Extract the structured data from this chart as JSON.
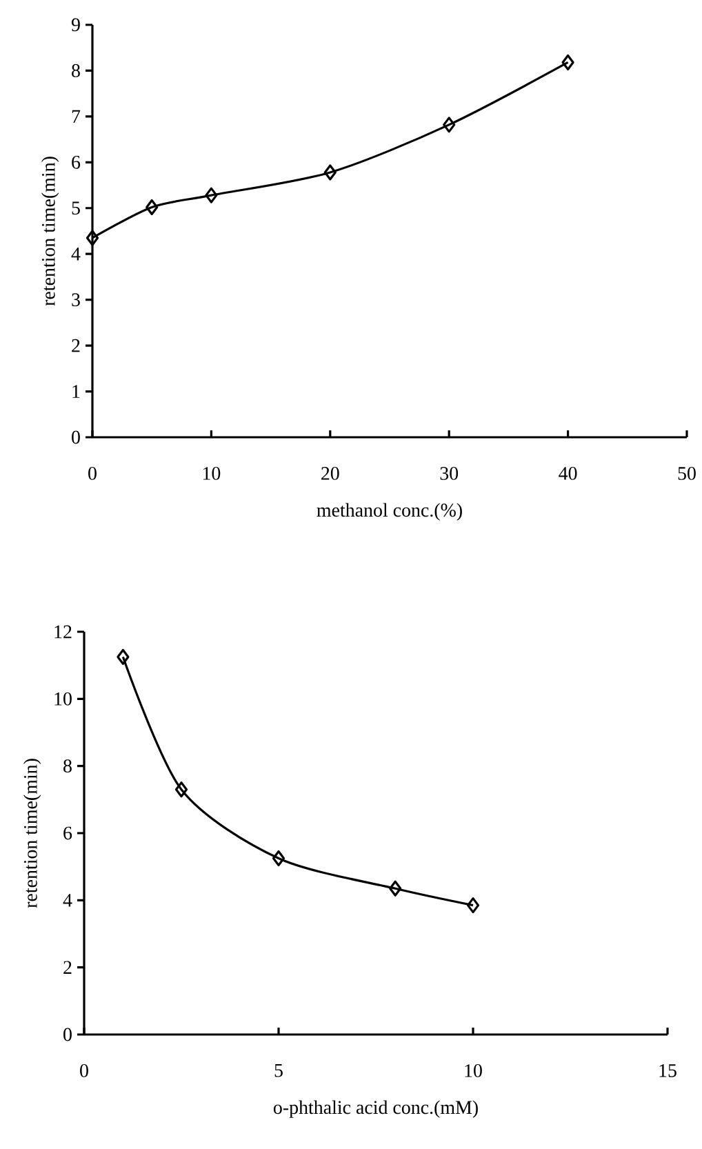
{
  "chart_data": [
    {
      "type": "line",
      "xlabel": "methanol conc.(%)",
      "ylabel": "retention time(min)",
      "x": [
        0,
        5,
        10,
        20,
        30,
        40
      ],
      "values": [
        4.35,
        5.02,
        5.28,
        5.78,
        6.82,
        8.18
      ],
      "color": "#000000",
      "marker": "diamond",
      "line_style": "solid",
      "xlim": [
        0,
        50
      ],
      "ylim": [
        0,
        9
      ],
      "xticks": [
        0,
        10,
        20,
        30,
        40,
        50
      ],
      "yticks": [
        0,
        1,
        2,
        3,
        4,
        5,
        6,
        7,
        8,
        9
      ],
      "grid": false
    },
    {
      "type": "line",
      "xlabel": "o-phthalic acid conc.(mM)",
      "ylabel": "retention time(min)",
      "x": [
        1,
        2.5,
        5,
        8,
        10
      ],
      "values": [
        11.25,
        7.3,
        5.25,
        4.35,
        3.85
      ],
      "color": "#000000",
      "marker": "diamond",
      "line_style": "solid",
      "xlim": [
        0,
        15
      ],
      "ylim": [
        0,
        12
      ],
      "xticks": [
        0,
        5,
        10,
        15
      ],
      "yticks": [
        0,
        2,
        4,
        6,
        8,
        10,
        12
      ],
      "grid": false
    }
  ]
}
